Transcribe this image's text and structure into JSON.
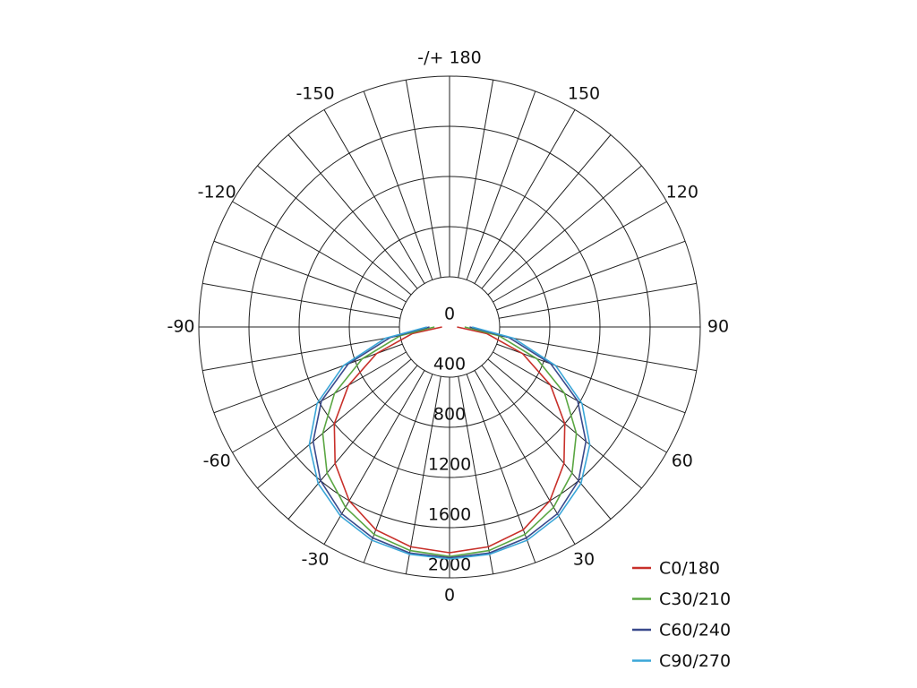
{
  "chart_data": {
    "type": "polar",
    "theta": [
      -90,
      -80,
      -70,
      -60,
      -50,
      -40,
      -30,
      -20,
      -10,
      0,
      10,
      20,
      30,
      40,
      50,
      60,
      70,
      80,
      90
    ],
    "rlim": [
      0,
      2000
    ],
    "rticks": [
      0,
      400,
      800,
      1200,
      1600,
      2000
    ],
    "theta_grid_step": 10,
    "thetaticks": [
      {
        "value": 180,
        "label": "-/+ 180"
      },
      150,
      -150,
      120,
      -120,
      90,
      -90,
      60,
      -60,
      30,
      -30,
      0
    ],
    "series": [
      {
        "name": "C0/180",
        "color": "#c8302a",
        "values": [
          60,
          300,
          620,
          930,
          1200,
          1420,
          1600,
          1720,
          1780,
          1800,
          1780,
          1720,
          1600,
          1420,
          1200,
          930,
          620,
          300,
          60
        ]
      },
      {
        "name": "C30/210",
        "color": "#5aa642",
        "values": [
          120,
          400,
          740,
          1060,
          1320,
          1520,
          1660,
          1760,
          1810,
          1830,
          1810,
          1760,
          1660,
          1520,
          1320,
          1060,
          740,
          400,
          120
        ]
      },
      {
        "name": "C60/240",
        "color": "#3a4a8c",
        "values": [
          160,
          480,
          860,
          1180,
          1420,
          1600,
          1720,
          1790,
          1830,
          1840,
          1830,
          1790,
          1720,
          1600,
          1420,
          1180,
          860,
          480,
          160
        ]
      },
      {
        "name": "C90/270",
        "color": "#3aa6d8",
        "values": [
          180,
          520,
          900,
          1220,
          1460,
          1630,
          1740,
          1810,
          1840,
          1850,
          1840,
          1810,
          1740,
          1630,
          1460,
          1220,
          900,
          520,
          180
        ]
      }
    ]
  }
}
